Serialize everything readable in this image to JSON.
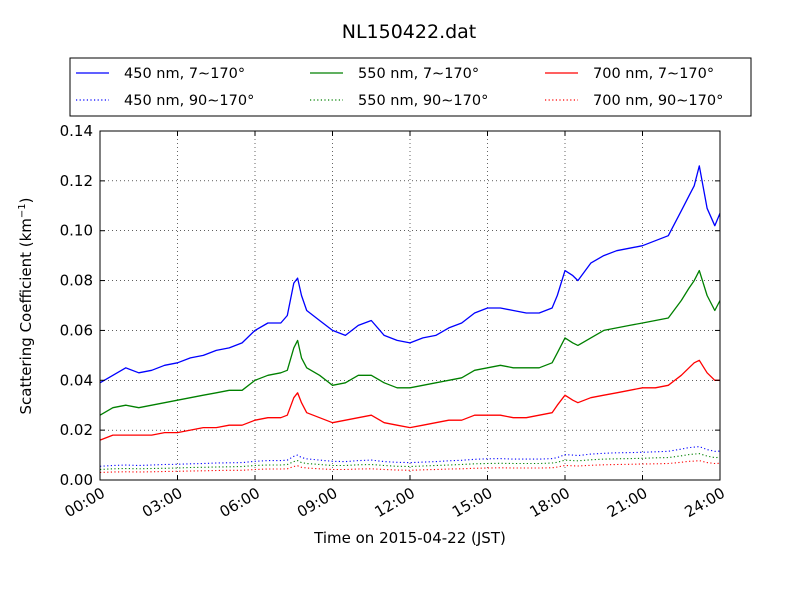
{
  "chart_data": {
    "type": "line",
    "title": "NL150422.dat",
    "xlabel": "Time on 2015-04-22 (JST)",
    "ylabel": "Scattering Coefficient (km",
    "ylabel_sup": "−1",
    "ylabel_end": ")",
    "x_unit": "hours",
    "xlim": [
      0,
      24
    ],
    "ylim": [
      0,
      0.14
    ],
    "x_ticks": [
      0,
      3,
      6,
      9,
      12,
      15,
      18,
      21,
      24
    ],
    "x_tick_labels": [
      "00:00",
      "03:00",
      "06:00",
      "09:00",
      "12:00",
      "15:00",
      "18:00",
      "21:00",
      "24:00"
    ],
    "y_ticks": [
      0,
      0.02,
      0.04,
      0.06,
      0.08,
      0.1,
      0.12,
      0.14
    ],
    "y_tick_labels": [
      "0.00",
      "0.02",
      "0.04",
      "0.06",
      "0.08",
      "0.10",
      "0.12",
      "0.14"
    ],
    "grid": true,
    "legend_position": "top",
    "x": [
      0,
      0.5,
      1,
      1.5,
      2,
      2.5,
      3,
      3.5,
      4,
      4.5,
      5,
      5.5,
      6,
      6.5,
      7,
      7.25,
      7.5,
      7.65,
      7.8,
      8,
      8.5,
      9,
      9.5,
      10,
      10.5,
      11,
      11.5,
      12,
      12.5,
      13,
      13.5,
      14,
      14.5,
      15,
      15.5,
      16,
      16.5,
      17,
      17.5,
      17.7,
      18,
      18.3,
      18.5,
      19,
      19.5,
      20,
      20.5,
      21,
      21.5,
      22,
      22.5,
      22.8,
      23,
      23.2,
      23.5,
      23.8,
      24
    ],
    "series": [
      {
        "name": "450 nm, 7∼170°",
        "color": "#0000ff",
        "style": "solid",
        "values": [
          0.039,
          0.042,
          0.045,
          0.043,
          0.044,
          0.046,
          0.047,
          0.049,
          0.05,
          0.052,
          0.053,
          0.055,
          0.06,
          0.063,
          0.063,
          0.066,
          0.079,
          0.081,
          0.074,
          0.068,
          0.064,
          0.06,
          0.058,
          0.062,
          0.064,
          0.058,
          0.056,
          0.055,
          0.057,
          0.058,
          0.061,
          0.063,
          0.067,
          0.069,
          0.069,
          0.068,
          0.067,
          0.067,
          0.069,
          0.074,
          0.084,
          0.082,
          0.08,
          0.087,
          0.09,
          0.092,
          0.093,
          0.094,
          0.096,
          0.098,
          0.108,
          0.114,
          0.118,
          0.126,
          0.109,
          0.102,
          0.107
        ]
      },
      {
        "name": "550 nm, 7∼170°",
        "color": "#008000",
        "style": "solid",
        "values": [
          0.026,
          0.029,
          0.03,
          0.029,
          0.03,
          0.031,
          0.032,
          0.033,
          0.034,
          0.035,
          0.036,
          0.036,
          0.04,
          0.042,
          0.043,
          0.044,
          0.053,
          0.056,
          0.049,
          0.045,
          0.042,
          0.038,
          0.039,
          0.042,
          0.042,
          0.039,
          0.037,
          0.037,
          0.038,
          0.039,
          0.04,
          0.041,
          0.044,
          0.045,
          0.046,
          0.045,
          0.045,
          0.045,
          0.047,
          0.051,
          0.057,
          0.055,
          0.054,
          0.057,
          0.06,
          0.061,
          0.062,
          0.063,
          0.064,
          0.065,
          0.072,
          0.077,
          0.08,
          0.084,
          0.074,
          0.068,
          0.072
        ]
      },
      {
        "name": "700 nm, 7∼170°",
        "color": "#ff0000",
        "style": "solid",
        "values": [
          0.016,
          0.018,
          0.018,
          0.018,
          0.018,
          0.019,
          0.019,
          0.02,
          0.021,
          0.021,
          0.022,
          0.022,
          0.024,
          0.025,
          0.025,
          0.026,
          0.033,
          0.035,
          0.031,
          0.027,
          0.025,
          0.023,
          0.024,
          0.025,
          0.026,
          0.023,
          0.022,
          0.021,
          0.022,
          0.023,
          0.024,
          0.024,
          0.026,
          0.026,
          0.026,
          0.025,
          0.025,
          0.026,
          0.027,
          0.03,
          0.034,
          0.032,
          0.031,
          0.033,
          0.034,
          0.035,
          0.036,
          0.037,
          0.037,
          0.038,
          0.042,
          0.045,
          0.047,
          0.048,
          0.043,
          0.04,
          0.04
        ]
      },
      {
        "name": "450 nm, 90∼170°",
        "color": "#0000ff",
        "style": "dotted",
        "values": [
          0.0055,
          0.0058,
          0.006,
          0.0058,
          0.006,
          0.0062,
          0.0063,
          0.0065,
          0.0066,
          0.0068,
          0.0069,
          0.007,
          0.0075,
          0.0078,
          0.0078,
          0.008,
          0.0095,
          0.01,
          0.009,
          0.0085,
          0.008,
          0.0075,
          0.0074,
          0.0078,
          0.008,
          0.0074,
          0.0071,
          0.007,
          0.0072,
          0.0074,
          0.0077,
          0.0079,
          0.0083,
          0.0085,
          0.0086,
          0.0084,
          0.0084,
          0.0084,
          0.0086,
          0.009,
          0.0102,
          0.01,
          0.0098,
          0.0104,
          0.0107,
          0.0109,
          0.011,
          0.0111,
          0.0113,
          0.0115,
          0.0124,
          0.013,
          0.0132,
          0.0134,
          0.0122,
          0.0115,
          0.0116
        ]
      },
      {
        "name": "550 nm, 90∼170°",
        "color": "#008000",
        "style": "dotted",
        "values": [
          0.0042,
          0.0045,
          0.0046,
          0.0045,
          0.0046,
          0.0047,
          0.0048,
          0.005,
          0.0051,
          0.0052,
          0.0053,
          0.0054,
          0.0058,
          0.006,
          0.006,
          0.0062,
          0.0074,
          0.0078,
          0.007,
          0.0066,
          0.0062,
          0.0058,
          0.0058,
          0.0061,
          0.0062,
          0.0058,
          0.0055,
          0.0054,
          0.0056,
          0.0058,
          0.006,
          0.0062,
          0.0065,
          0.0066,
          0.0067,
          0.0066,
          0.0066,
          0.0066,
          0.0068,
          0.0071,
          0.008,
          0.0078,
          0.0077,
          0.0081,
          0.0084,
          0.0085,
          0.0086,
          0.0087,
          0.0089,
          0.009,
          0.0097,
          0.0102,
          0.0104,
          0.0106,
          0.0096,
          0.009,
          0.0091
        ]
      },
      {
        "name": "700 nm, 90∼170°",
        "color": "#ff0000",
        "style": "dotted",
        "values": [
          0.003,
          0.0032,
          0.0033,
          0.0032,
          0.0033,
          0.0034,
          0.0035,
          0.0036,
          0.0037,
          0.0038,
          0.0039,
          0.0039,
          0.0042,
          0.0044,
          0.0044,
          0.0045,
          0.0054,
          0.0057,
          0.0051,
          0.0048,
          0.0045,
          0.0042,
          0.0042,
          0.0044,
          0.0045,
          0.0042,
          0.004,
          0.0039,
          0.0041,
          0.0042,
          0.0044,
          0.0045,
          0.0047,
          0.0048,
          0.0049,
          0.0048,
          0.0048,
          0.0048,
          0.0049,
          0.0052,
          0.0058,
          0.0057,
          0.0056,
          0.0059,
          0.0061,
          0.0062,
          0.0063,
          0.0064,
          0.0065,
          0.0066,
          0.0071,
          0.0075,
          0.0076,
          0.0078,
          0.007,
          0.0066,
          0.0067
        ]
      }
    ]
  }
}
